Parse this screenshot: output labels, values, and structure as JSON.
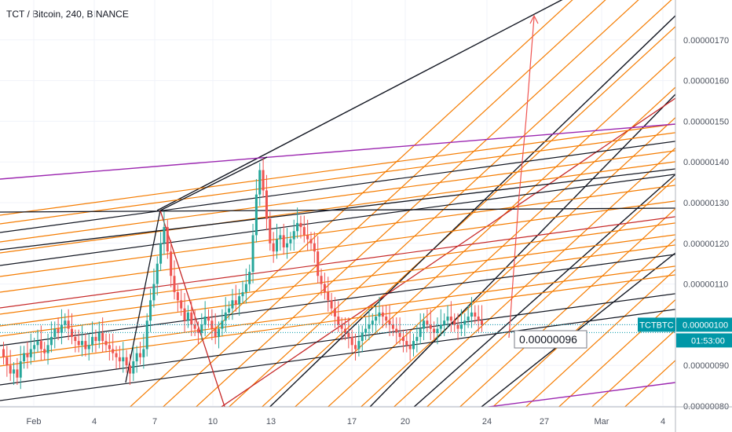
{
  "header": {
    "title": "TCT / Bitcoin, 240, BINANCE"
  },
  "chart_data": {
    "type": "candlestick",
    "symbol": "TCTBTC",
    "ylim": [
      7.9e-08,
      1.82e-07
    ],
    "y_ticks": [
      "0.00000080",
      "0.00000090",
      "0.00000100",
      "0.00000110",
      "0.00000120",
      "0.00000130",
      "0.00000140",
      "0.00000150",
      "0.00000160",
      "0.00000170"
    ],
    "y_tick_values": [
      80,
      90,
      100,
      110,
      120,
      130,
      140,
      150,
      160,
      170
    ],
    "x_ticks": [
      "Feb",
      "4",
      "7",
      "10",
      "13",
      "17",
      "20",
      "24",
      "27",
      "Mar",
      "4"
    ],
    "last_price": "0.00000100",
    "last_price_value": 100,
    "countdown": "01:53:00",
    "annotation": "0.00000096",
    "colors": {
      "up": "#26a69a",
      "down": "#ef5350",
      "orange": "#f57c00",
      "black": "#131722",
      "purple": "#9c27b0",
      "red": "#c62828",
      "accent": "#0097a7"
    },
    "candles_close": [
      92,
      90,
      88,
      89,
      87,
      91,
      93,
      92,
      94,
      95,
      96,
      94,
      93,
      95,
      97,
      99,
      98,
      100,
      101,
      99,
      97,
      96,
      95,
      96,
      94,
      95,
      97,
      96,
      98,
      96,
      95,
      94,
      93,
      92,
      91,
      92,
      90,
      88,
      91,
      93,
      92,
      94,
      101,
      106,
      110,
      115,
      120,
      124,
      118,
      112,
      108,
      106,
      104,
      101,
      103,
      100,
      99,
      98,
      100,
      102,
      101,
      99,
      97,
      99,
      101,
      103,
      104,
      106,
      105,
      107,
      108,
      110,
      113,
      122,
      132,
      138,
      133,
      126,
      120,
      118,
      121,
      122,
      119,
      120,
      121,
      123,
      125,
      124,
      122,
      121,
      120,
      118,
      112,
      110,
      108,
      106,
      104,
      102,
      100,
      99,
      98,
      97,
      95,
      94,
      96,
      98,
      99,
      100,
      101,
      102,
      103,
      102,
      101,
      100,
      99,
      98,
      97,
      96,
      95,
      94,
      96,
      97,
      99,
      101,
      100,
      99,
      98,
      99,
      100,
      101,
      102,
      101,
      100,
      99,
      100,
      101,
      102,
      103,
      102,
      101,
      100
    ]
  }
}
